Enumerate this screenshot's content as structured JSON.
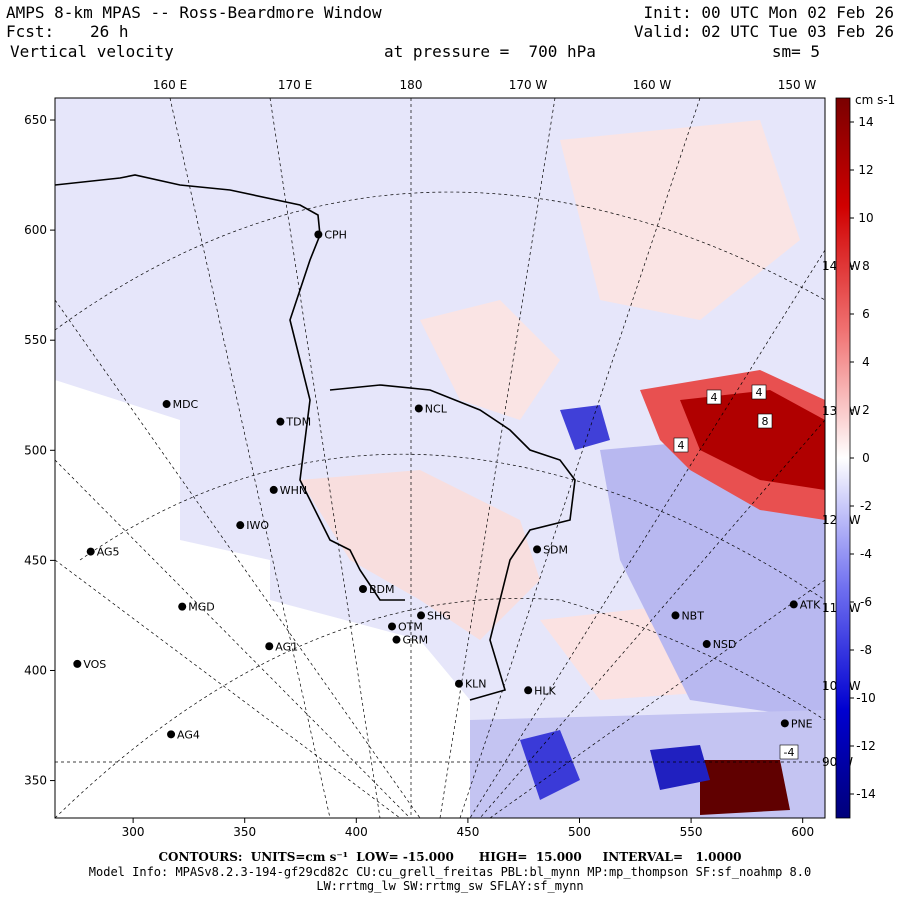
{
  "header": {
    "title": "AMPS 8-km MPAS -- Ross-Beardmore Window",
    "forecast_label": "Fcst:",
    "forecast_value": "26 h",
    "field": "Vertical velocity",
    "init": "Init: 00 UTC Mon 02 Feb 26",
    "valid": "Valid: 02 UTC Tue 03 Feb 26",
    "pressure": "at pressure =  700 hPa",
    "smoothing": "sm= 5"
  },
  "map": {
    "top_lon_labels": [
      "160 E",
      "170 E",
      "180",
      "170 W",
      "160 W",
      "150 W"
    ],
    "right_lon_labels": [
      "140 W",
      "130 W",
      "120 W",
      "110 W",
      "100 W",
      "90 W"
    ],
    "x_axis": {
      "ticks": [
        300,
        350,
        400,
        450,
        500,
        550,
        600
      ],
      "range": [
        265,
        610
      ]
    },
    "y_axis": {
      "ticks": [
        350,
        400,
        450,
        500,
        550,
        600,
        650
      ],
      "range": [
        333,
        660
      ]
    },
    "stations": [
      {
        "name": "CPH",
        "x": 383,
        "y": 598
      },
      {
        "name": "MDC",
        "x": 315,
        "y": 521
      },
      {
        "name": "TDM",
        "x": 366,
        "y": 513
      },
      {
        "name": "NCL",
        "x": 428,
        "y": 519
      },
      {
        "name": "WHN",
        "x": 363,
        "y": 482
      },
      {
        "name": "IWO",
        "x": 348,
        "y": 466
      },
      {
        "name": "AG5",
        "x": 281,
        "y": 454
      },
      {
        "name": "SDM",
        "x": 481,
        "y": 455
      },
      {
        "name": "BDM",
        "x": 403,
        "y": 437
      },
      {
        "name": "MGD",
        "x": 322,
        "y": 429
      },
      {
        "name": "SHG",
        "x": 429,
        "y": 425
      },
      {
        "name": "OTM",
        "x": 416,
        "y": 420
      },
      {
        "name": "GRM",
        "x": 418,
        "y": 414
      },
      {
        "name": "NBT",
        "x": 543,
        "y": 425
      },
      {
        "name": "AG1",
        "x": 361,
        "y": 411
      },
      {
        "name": "NSD",
        "x": 557,
        "y": 412
      },
      {
        "name": "ATK",
        "x": 596,
        "y": 430
      },
      {
        "name": "VOS",
        "x": 275,
        "y": 403
      },
      {
        "name": "KLN",
        "x": 446,
        "y": 394
      },
      {
        "name": "HLK",
        "x": 477,
        "y": 391
      },
      {
        "name": "PNE",
        "x": 592,
        "y": 376
      },
      {
        "name": "AG4",
        "x": 317,
        "y": 371
      }
    ],
    "contour_labels": [
      "4",
      "4",
      "8",
      "4",
      "-4"
    ]
  },
  "colorbar": {
    "units": "cm s-1",
    "min": -15,
    "max": 15,
    "tick_values": [
      14,
      12,
      10,
      8,
      6,
      4,
      2,
      0,
      -2,
      -4,
      -6,
      -8,
      -10,
      -12,
      -14
    ]
  },
  "footer": {
    "contours_line": "CONTOURS:  UNITS=cm s⁻¹  LOW= -15.000      HIGH=  15.000     INTERVAL=   1.0000",
    "model_info": "Model Info: MPASv8.2.3-194-gf29cd82c CU:cu_grell_freitas PBL:bl_mynn MP:mp_thompson SF:sf_noahmp 8.0",
    "model_info2": "LW:rrtmg_lw SW:rrtmg_sw SFLAY:sf_mynn"
  },
  "colors": {
    "neutral": "#ffffff",
    "weak_pos": "#fbe0e0",
    "weak_neg": "#e2e2fa",
    "strong_pos": "#8b0000",
    "strong_neg": "#00008b"
  }
}
